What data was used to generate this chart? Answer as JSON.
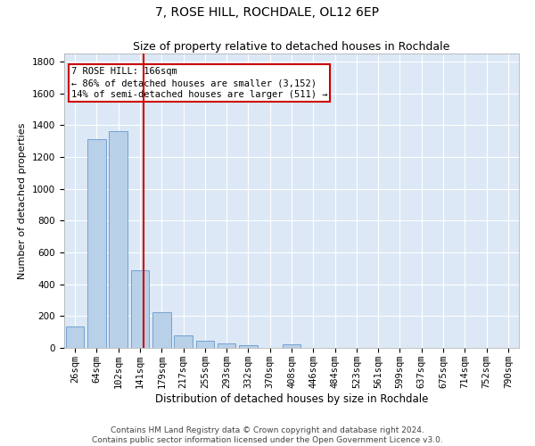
{
  "title": "7, ROSE HILL, ROCHDALE, OL12 6EP",
  "subtitle": "Size of property relative to detached houses in Rochdale",
  "xlabel": "Distribution of detached houses by size in Rochdale",
  "ylabel": "Number of detached properties",
  "bar_labels": [
    "26sqm",
    "64sqm",
    "102sqm",
    "141sqm",
    "179sqm",
    "217sqm",
    "255sqm",
    "293sqm",
    "332sqm",
    "370sqm",
    "408sqm",
    "446sqm",
    "484sqm",
    "523sqm",
    "561sqm",
    "599sqm",
    "637sqm",
    "675sqm",
    "714sqm",
    "752sqm",
    "790sqm"
  ],
  "bar_values": [
    135,
    1310,
    1365,
    490,
    225,
    80,
    45,
    28,
    15,
    0,
    20,
    0,
    0,
    0,
    0,
    0,
    0,
    0,
    0,
    0,
    0
  ],
  "bar_color": "#b8d0e8",
  "bar_edge_color": "#6699cc",
  "background_color": "#dce8f5",
  "grid_color": "#ffffff",
  "vline_color": "#cc0000",
  "annotation_text": "7 ROSE HILL: 166sqm\n← 86% of detached houses are smaller (3,152)\n14% of semi-detached houses are larger (511) →",
  "annotation_box_color": "#cc0000",
  "ylim": [
    0,
    1850
  ],
  "yticks": [
    0,
    200,
    400,
    600,
    800,
    1000,
    1200,
    1400,
    1600,
    1800
  ],
  "footer_text": "Contains HM Land Registry data © Crown copyright and database right 2024.\nContains public sector information licensed under the Open Government Licence v3.0.",
  "title_fontsize": 10,
  "subtitle_fontsize": 9,
  "xlabel_fontsize": 8.5,
  "ylabel_fontsize": 8,
  "tick_fontsize": 7.5,
  "annotation_fontsize": 7.5,
  "footer_fontsize": 6.5
}
